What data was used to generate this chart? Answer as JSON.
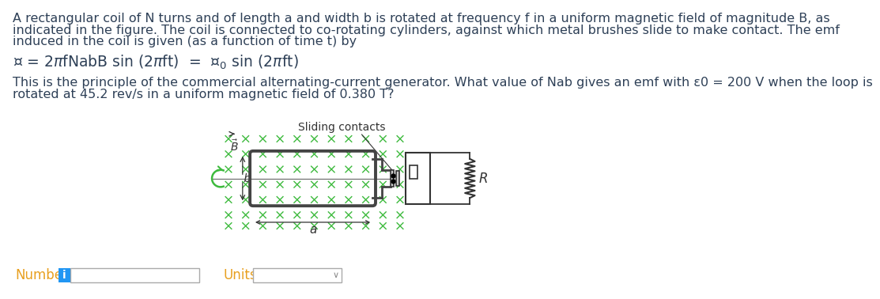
{
  "bg_color": "#ffffff",
  "text_color": "#2e4057",
  "title_lines": [
    "A rectangular coil of N turns and of length a and width b is rotated at frequency f in a uniform magnetic field of magnitude B, as",
    "indicated in the figure. The coil is connected to co-rotating cylinders, against which metal brushes slide to make contact. The emf",
    "induced in the coil is given (as a function of time t) by"
  ],
  "question_lines": [
    "This is the principle of the commercial alternating-current generator. What value of Nab gives an emf with ε0 = 200 V when the loop is",
    "rotated at 45.2 rev/s in a uniform magnetic field of 0.380 T?"
  ],
  "number_label": "Number",
  "units_label": "Units",
  "sliding_contacts_label": "Sliding contacts",
  "R_label": "R",
  "a_label": "a",
  "b_label": "b",
  "cross_color": "#3dba3d",
  "coil_color": "#444444",
  "circuit_color": "#333333",
  "axis_color": "#666666",
  "text_dark": "#333333",
  "input_border": "#aaaaaa",
  "input_bg": "#ffffff",
  "info_bg": "#2196f3",
  "number_text_color": "#e8a020",
  "units_text_color": "#e8a020",
  "rotation_color": "#3dba3d"
}
